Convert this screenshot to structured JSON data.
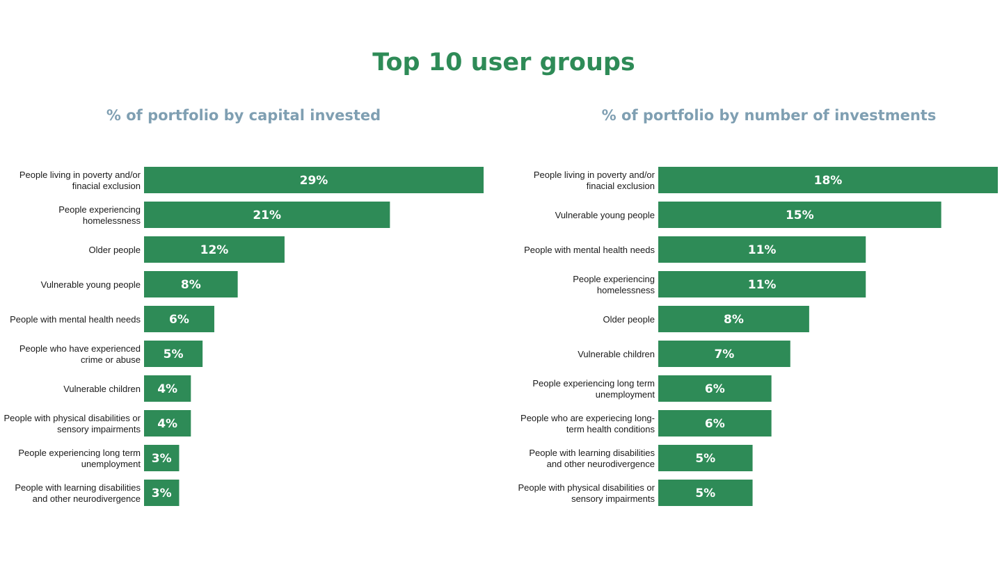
{
  "title": "Top 10 user groups",
  "colors": {
    "title": "#2e8b57",
    "bar": "#2e8b57",
    "subtitle": "#7f9fb2"
  },
  "chart_data": [
    {
      "type": "bar",
      "orientation": "horizontal",
      "title": "% of portfolio by capital invested",
      "unit": "%",
      "categories": [
        [
          "People living in poverty and/or",
          "finacial exclusion"
        ],
        [
          "People experiencing",
          "homelessness"
        ],
        [
          "Older people"
        ],
        [
          "Vulnerable young people"
        ],
        [
          "People with mental health needs"
        ],
        [
          "People who have experienced",
          "crime or abuse"
        ],
        [
          "Vulnerable children"
        ],
        [
          "People with physical disabilities or",
          "sensory impairments"
        ],
        [
          "People experiencing long term",
          "unemployment"
        ],
        [
          "People with learning disabilities",
          "and other neurodivergence"
        ]
      ],
      "values": [
        29,
        21,
        12,
        8,
        6,
        5,
        4,
        4,
        3,
        3
      ],
      "xlim": [
        0,
        29
      ],
      "grid": false,
      "legend": "none"
    },
    {
      "type": "bar",
      "orientation": "horizontal",
      "title": "% of portfolio by number of investments",
      "unit": "%",
      "categories": [
        [
          "People living in poverty and/or",
          "finacial exclusion"
        ],
        [
          "Vulnerable young people"
        ],
        [
          "People with mental health needs"
        ],
        [
          "People experiencing",
          "homelessness"
        ],
        [
          "Older people"
        ],
        [
          "Vulnerable children"
        ],
        [
          "People experiencing long term",
          "unemployment"
        ],
        [
          "People who are experiecing long-",
          "term health conditions"
        ],
        [
          "People with learning disabilities",
          "and other neurodivergence"
        ],
        [
          "People with physical disabilities or",
          "sensory impairments"
        ]
      ],
      "values": [
        18,
        15,
        11,
        11,
        8,
        7,
        6,
        6,
        5,
        5
      ],
      "xlim": [
        0,
        18
      ],
      "grid": false,
      "legend": "none"
    }
  ]
}
